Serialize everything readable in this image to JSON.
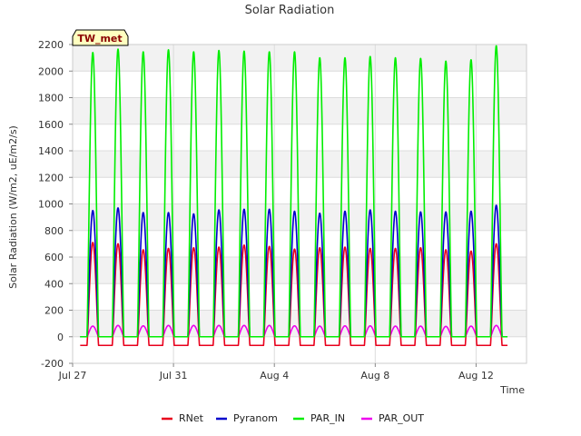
{
  "chart_data": {
    "type": "line",
    "title": "Solar Radiation",
    "xlabel": "Time",
    "ylabel": "Solar Radiation (W/m2, uE/m2/s)",
    "tag": "TW_met",
    "ylim": [
      -200,
      2200
    ],
    "yticks": [
      -200,
      0,
      200,
      400,
      600,
      800,
      1000,
      1200,
      1400,
      1600,
      1800,
      2000,
      2200
    ],
    "xlim_days": [
      0,
      18
    ],
    "xticks": [
      {
        "label": "Jul 27",
        "day": 0
      },
      {
        "label": "Jul 31",
        "day": 4
      },
      {
        "label": "Aug 4",
        "day": 8
      },
      {
        "label": "Aug 8",
        "day": 12
      },
      {
        "label": "Aug 12",
        "day": 16
      }
    ],
    "grid": true,
    "legend_position": "bottom",
    "start_day": 0.3,
    "peak_offset": 0.5,
    "days": [
      {
        "par_in": 2140,
        "pyranom": 950,
        "rnet": 710,
        "par_out": 80
      },
      {
        "par_in": 2165,
        "pyranom": 970,
        "rnet": 700,
        "par_out": 85
      },
      {
        "par_in": 2145,
        "pyranom": 935,
        "rnet": 655,
        "par_out": 82
      },
      {
        "par_in": 2160,
        "pyranom": 935,
        "rnet": 665,
        "par_out": 85
      },
      {
        "par_in": 2145,
        "pyranom": 925,
        "rnet": 670,
        "par_out": 85
      },
      {
        "par_in": 2155,
        "pyranom": 955,
        "rnet": 675,
        "par_out": 85
      },
      {
        "par_in": 2150,
        "pyranom": 960,
        "rnet": 690,
        "par_out": 85
      },
      {
        "par_in": 2145,
        "pyranom": 960,
        "rnet": 680,
        "par_out": 85
      },
      {
        "par_in": 2145,
        "pyranom": 945,
        "rnet": 660,
        "par_out": 82
      },
      {
        "par_in": 2100,
        "pyranom": 930,
        "rnet": 670,
        "par_out": 80
      },
      {
        "par_in": 2100,
        "pyranom": 945,
        "rnet": 675,
        "par_out": 82
      },
      {
        "par_in": 2110,
        "pyranom": 955,
        "rnet": 665,
        "par_out": 82
      },
      {
        "par_in": 2100,
        "pyranom": 945,
        "rnet": 665,
        "par_out": 80
      },
      {
        "par_in": 2095,
        "pyranom": 940,
        "rnet": 670,
        "par_out": 80
      },
      {
        "par_in": 2075,
        "pyranom": 940,
        "rnet": 655,
        "par_out": 78
      },
      {
        "par_in": 2085,
        "pyranom": 945,
        "rnet": 645,
        "par_out": 80
      },
      {
        "par_in": 2190,
        "pyranom": 990,
        "rnet": 700,
        "par_out": 85
      }
    ],
    "night": {
      "rnet": -65,
      "pyranom": 0,
      "par_in": 0,
      "par_out": 0
    },
    "series": [
      {
        "name": "RNet",
        "key": "rnet",
        "color": "#e8001c"
      },
      {
        "name": "Pyranom",
        "key": "pyranom",
        "color": "#0000cc"
      },
      {
        "name": "PAR_IN",
        "key": "par_in",
        "color": "#00ee00"
      },
      {
        "name": "PAR_OUT",
        "key": "par_out",
        "color": "#ee00ee"
      }
    ],
    "background": {
      "plot": "#ffffff",
      "band": "#f2f2f2",
      "grid": "#dcdcdc"
    }
  }
}
